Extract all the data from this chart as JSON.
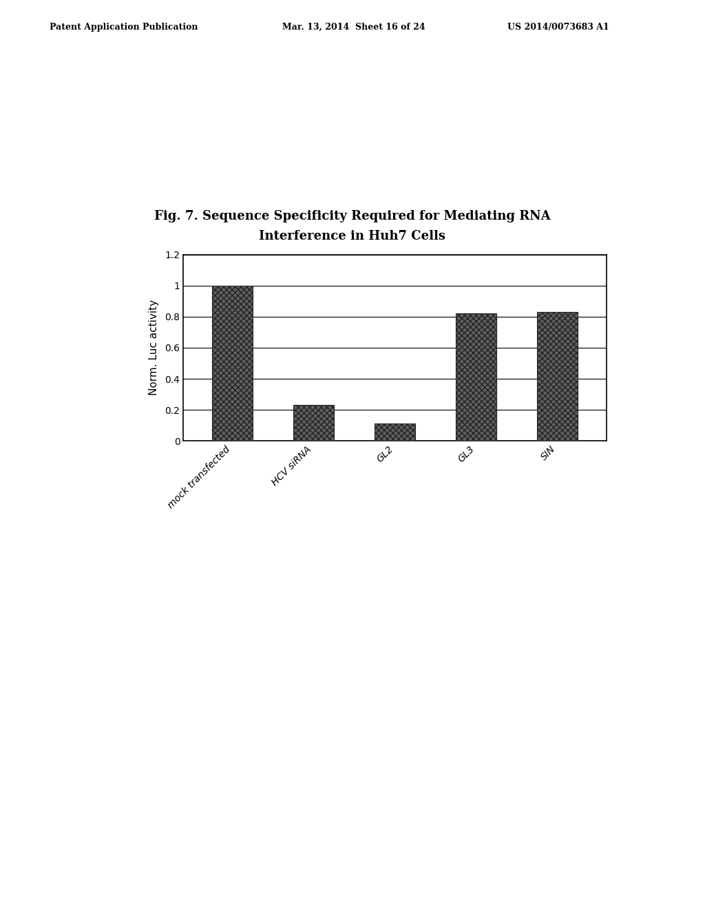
{
  "title_line1": "Fig. 7. Sequence Specificity Required for Mediating RNA",
  "title_line2": "Interference in Huh7 Cells",
  "header_left": "Patent Application Publication",
  "header_middle": "Mar. 13, 2014  Sheet 16 of 24",
  "header_right": "US 2014/0073683 A1",
  "categories": [
    "mock transfected",
    "HCV siRNA",
    "GL2",
    "GL3",
    "SIN"
  ],
  "values": [
    1.0,
    0.23,
    0.11,
    0.82,
    0.83
  ],
  "ylabel": "Norm. Luc activity",
  "ylim": [
    0,
    1.2
  ],
  "yticks": [
    0,
    0.2,
    0.4,
    0.6,
    0.8,
    1.0,
    1.2
  ],
  "bar_color": "#555555",
  "background_color": "#ffffff",
  "plot_bg_color": "#ffffff",
  "bar_width": 0.5,
  "grid_color": "#000000",
  "box_color": "#000000",
  "header_fontsize": 9,
  "title_fontsize": 13,
  "ylabel_fontsize": 11,
  "tick_fontsize": 10,
  "xtick_fontsize": 10
}
